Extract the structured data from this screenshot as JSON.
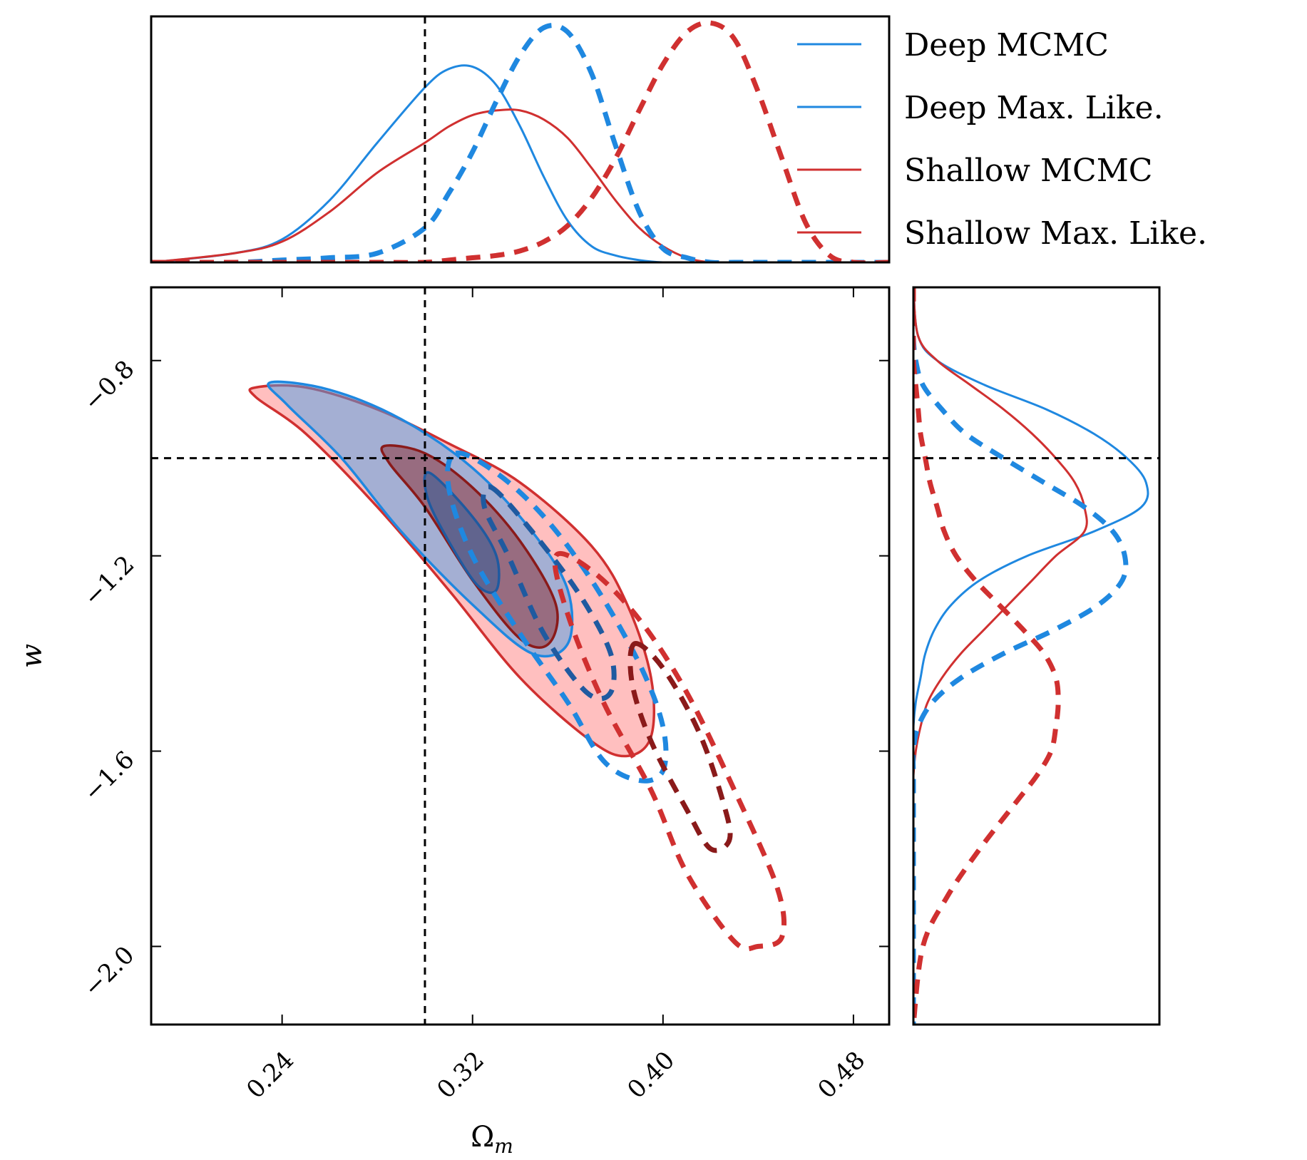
{
  "chart_data": {
    "type": "contour",
    "xlabel": "Ω",
    "xlabel_sub": "m",
    "ylabel": "w",
    "xlim": [
      0.185,
      0.495
    ],
    "ylim": [
      -2.16,
      -0.65
    ],
    "xticks": [
      0.24,
      0.32,
      0.4,
      0.48
    ],
    "xtick_labels": [
      "0.24",
      "0.32",
      "0.40",
      "0.48"
    ],
    "yticks": [
      -0.8,
      -1.2,
      -1.6,
      -2.0
    ],
    "ytick_labels": [
      "−0.8",
      "−1.2",
      "−1.6",
      "−2.0"
    ],
    "truth": {
      "omega_m": 0.3,
      "w": -1.0
    },
    "colors": {
      "deep": "#1f88e0",
      "shallow": "#d03030",
      "shallow_inner": "#8a1a1a",
      "shallow_fill": "#ff8080",
      "deep_fill": "#4aa0e8",
      "truth": "#000000"
    },
    "legend": {
      "position": "top-right",
      "entries": [
        {
          "label": "Deep MCMC",
          "color": "#1f88e0",
          "style": "solid"
        },
        {
          "label": "Deep Max. Like.",
          "color": "#1f88e0",
          "style": "solid"
        },
        {
          "label": "Shallow MCMC",
          "color": "#d03030",
          "style": "solid"
        },
        {
          "label": "Shallow Max. Like.",
          "color": "#d03030",
          "style": "solid"
        }
      ]
    },
    "marginal_omega_m": {
      "x": [
        0.185,
        0.22,
        0.24,
        0.26,
        0.28,
        0.3,
        0.31,
        0.32,
        0.33,
        0.34,
        0.35,
        0.36,
        0.37,
        0.38,
        0.39,
        0.4,
        0.41,
        0.42,
        0.43,
        0.44,
        0.45,
        0.46,
        0.47,
        0.48,
        0.495
      ],
      "series": [
        {
          "name": "Deep MCMC",
          "style": "solid",
          "values": [
            0.0,
            0.04,
            0.1,
            0.27,
            0.52,
            0.76,
            0.84,
            0.85,
            0.77,
            0.59,
            0.37,
            0.18,
            0.07,
            0.03,
            0.01,
            0.0,
            0.0,
            0.0,
            0.0,
            0.0,
            0.0,
            0.0,
            0.0,
            0.0,
            0.0
          ]
        },
        {
          "name": "Shallow MCMC",
          "style": "solid",
          "values": [
            0.0,
            0.04,
            0.09,
            0.22,
            0.39,
            0.52,
            0.59,
            0.64,
            0.66,
            0.66,
            0.62,
            0.54,
            0.41,
            0.27,
            0.15,
            0.07,
            0.02,
            0.0,
            0.0,
            0.0,
            0.0,
            0.0,
            0.0,
            0.0,
            0.0
          ]
        },
        {
          "name": "Deep Max. Like.",
          "style": "dashed",
          "values": [
            0.0,
            0.0,
            0.01,
            0.02,
            0.04,
            0.15,
            0.3,
            0.48,
            0.7,
            0.9,
            1.02,
            1.0,
            0.82,
            0.51,
            0.22,
            0.06,
            0.02,
            0.0,
            0.0,
            0.0,
            0.0,
            0.0,
            0.0,
            0.0,
            0.0
          ]
        },
        {
          "name": "Shallow Max. Like.",
          "style": "dashed",
          "values": [
            0.0,
            0.0,
            0.0,
            0.0,
            0.0,
            0.0,
            0.01,
            0.02,
            0.03,
            0.05,
            0.09,
            0.16,
            0.28,
            0.45,
            0.66,
            0.86,
            1.0,
            1.04,
            0.97,
            0.74,
            0.45,
            0.17,
            0.03,
            0.0,
            0.0
          ]
        }
      ]
    },
    "marginal_w": {
      "w": [
        -0.65,
        -0.75,
        -0.8,
        -0.85,
        -0.9,
        -0.95,
        -1.0,
        -1.05,
        -1.1,
        -1.15,
        -1.2,
        -1.25,
        -1.3,
        -1.35,
        -1.4,
        -1.45,
        -1.5,
        -1.55,
        -1.6,
        -1.65,
        -1.7,
        -1.8,
        -1.9,
        -2.0,
        -2.16
      ],
      "series": [
        {
          "name": "Deep MCMC",
          "style": "solid",
          "values": [
            0.0,
            0.02,
            0.1,
            0.3,
            0.56,
            0.76,
            0.9,
            0.98,
            0.96,
            0.76,
            0.48,
            0.28,
            0.16,
            0.09,
            0.05,
            0.03,
            0.01,
            0.0,
            0.0,
            0.0,
            0.0,
            0.0,
            0.0,
            0.0,
            0.0
          ]
        },
        {
          "name": "Shallow MCMC",
          "style": "solid",
          "values": [
            0.0,
            0.02,
            0.1,
            0.24,
            0.38,
            0.5,
            0.6,
            0.68,
            0.72,
            0.72,
            0.6,
            0.5,
            0.4,
            0.3,
            0.2,
            0.12,
            0.06,
            0.03,
            0.01,
            0.0,
            0.0,
            0.0,
            0.0,
            0.0,
            0.0
          ]
        },
        {
          "name": "Deep Max. Like.",
          "style": "dashed",
          "values": [
            0.0,
            0.0,
            0.01,
            0.04,
            0.12,
            0.22,
            0.38,
            0.55,
            0.72,
            0.84,
            0.89,
            0.88,
            0.78,
            0.6,
            0.38,
            0.2,
            0.08,
            0.02,
            0.0,
            0.0,
            0.0,
            0.0,
            0.0,
            0.0,
            0.0
          ]
        },
        {
          "name": "Shallow Max. Like.",
          "style": "dashed",
          "values": [
            0.0,
            0.0,
            0.0,
            0.01,
            0.02,
            0.03,
            0.05,
            0.07,
            0.1,
            0.13,
            0.18,
            0.26,
            0.36,
            0.46,
            0.55,
            0.6,
            0.61,
            0.6,
            0.58,
            0.52,
            0.44,
            0.28,
            0.14,
            0.04,
            0.0
          ]
        }
      ]
    },
    "contours": [
      {
        "name": "Shallow MCMC 95%",
        "style": "solid",
        "color": "#d03030",
        "fill": "#ff8080",
        "points": [
          [
            0.229,
            -0.855
          ],
          [
            0.25,
            -0.855
          ],
          [
            0.28,
            -0.9
          ],
          [
            0.31,
            -0.97
          ],
          [
            0.34,
            -1.05
          ],
          [
            0.37,
            -1.18
          ],
          [
            0.385,
            -1.3
          ],
          [
            0.395,
            -1.45
          ],
          [
            0.395,
            -1.57
          ],
          [
            0.385,
            -1.61
          ],
          [
            0.37,
            -1.58
          ],
          [
            0.34,
            -1.45
          ],
          [
            0.31,
            -1.27
          ],
          [
            0.28,
            -1.1
          ],
          [
            0.25,
            -0.95
          ],
          [
            0.229,
            -0.875
          ]
        ]
      },
      {
        "name": "Deep MCMC 95%",
        "style": "solid",
        "color": "#1f88e0",
        "fill": "#4aa0e8",
        "points": [
          [
            0.235,
            -0.845
          ],
          [
            0.26,
            -0.86
          ],
          [
            0.29,
            -0.92
          ],
          [
            0.32,
            -1.02
          ],
          [
            0.345,
            -1.15
          ],
          [
            0.36,
            -1.27
          ],
          [
            0.36,
            -1.38
          ],
          [
            0.345,
            -1.4
          ],
          [
            0.32,
            -1.3
          ],
          [
            0.29,
            -1.15
          ],
          [
            0.265,
            -1.0
          ],
          [
            0.242,
            -0.89
          ]
        ]
      },
      {
        "name": "Shallow MCMC 68%",
        "style": "solid",
        "color": "#8a1a1a",
        "fill": "#8a1a1a",
        "points": [
          [
            0.283,
            -0.975
          ],
          [
            0.3,
            -0.99
          ],
          [
            0.32,
            -1.06
          ],
          [
            0.34,
            -1.17
          ],
          [
            0.355,
            -1.3
          ],
          [
            0.352,
            -1.38
          ],
          [
            0.34,
            -1.37
          ],
          [
            0.32,
            -1.25
          ],
          [
            0.3,
            -1.1
          ],
          [
            0.285,
            -1.01
          ]
        ]
      },
      {
        "name": "Deep MCMC 68%",
        "style": "solid",
        "color": "#1f5aa0",
        "fill": "#1f5aa0",
        "points": [
          [
            0.302,
            -1.03
          ],
          [
            0.32,
            -1.12
          ],
          [
            0.33,
            -1.2
          ],
          [
            0.33,
            -1.27
          ],
          [
            0.322,
            -1.26
          ],
          [
            0.31,
            -1.17
          ],
          [
            0.301,
            -1.08
          ]
        ]
      },
      {
        "name": "Deep Max. Like. 95%",
        "style": "dashed",
        "color": "#1f88e0",
        "points": [
          [
            0.313,
            -0.99
          ],
          [
            0.33,
            -1.03
          ],
          [
            0.35,
            -1.12
          ],
          [
            0.37,
            -1.25
          ],
          [
            0.39,
            -1.42
          ],
          [
            0.4,
            -1.55
          ],
          [
            0.4,
            -1.64
          ],
          [
            0.39,
            -1.66
          ],
          [
            0.375,
            -1.62
          ],
          [
            0.36,
            -1.5
          ],
          [
            0.34,
            -1.36
          ],
          [
            0.32,
            -1.2
          ],
          [
            0.31,
            -1.06
          ]
        ]
      },
      {
        "name": "Deep Max. Like. 68%",
        "style": "dashed",
        "color": "#1f5aa0",
        "points": [
          [
            0.328,
            -1.06
          ],
          [
            0.345,
            -1.15
          ],
          [
            0.365,
            -1.28
          ],
          [
            0.378,
            -1.4
          ],
          [
            0.378,
            -1.48
          ],
          [
            0.368,
            -1.48
          ],
          [
            0.35,
            -1.36
          ],
          [
            0.335,
            -1.2
          ],
          [
            0.325,
            -1.1
          ]
        ]
      },
      {
        "name": "Shallow Max. Like. 95%",
        "style": "dashed",
        "color": "#d03030",
        "points": [
          [
            0.355,
            -1.2
          ],
          [
            0.37,
            -1.23
          ],
          [
            0.39,
            -1.33
          ],
          [
            0.41,
            -1.48
          ],
          [
            0.43,
            -1.68
          ],
          [
            0.448,
            -1.88
          ],
          [
            0.45,
            -1.98
          ],
          [
            0.44,
            -2.0
          ],
          [
            0.43,
            -1.99
          ],
          [
            0.41,
            -1.85
          ],
          [
            0.395,
            -1.68
          ],
          [
            0.375,
            -1.5
          ],
          [
            0.36,
            -1.32
          ]
        ]
      },
      {
        "name": "Shallow Max. Like. 68%",
        "style": "dashed",
        "color": "#8a1a1a",
        "points": [
          [
            0.388,
            -1.38
          ],
          [
            0.4,
            -1.43
          ],
          [
            0.415,
            -1.56
          ],
          [
            0.425,
            -1.7
          ],
          [
            0.428,
            -1.78
          ],
          [
            0.42,
            -1.8
          ],
          [
            0.41,
            -1.72
          ],
          [
            0.395,
            -1.58
          ],
          [
            0.387,
            -1.46
          ]
        ]
      }
    ]
  }
}
